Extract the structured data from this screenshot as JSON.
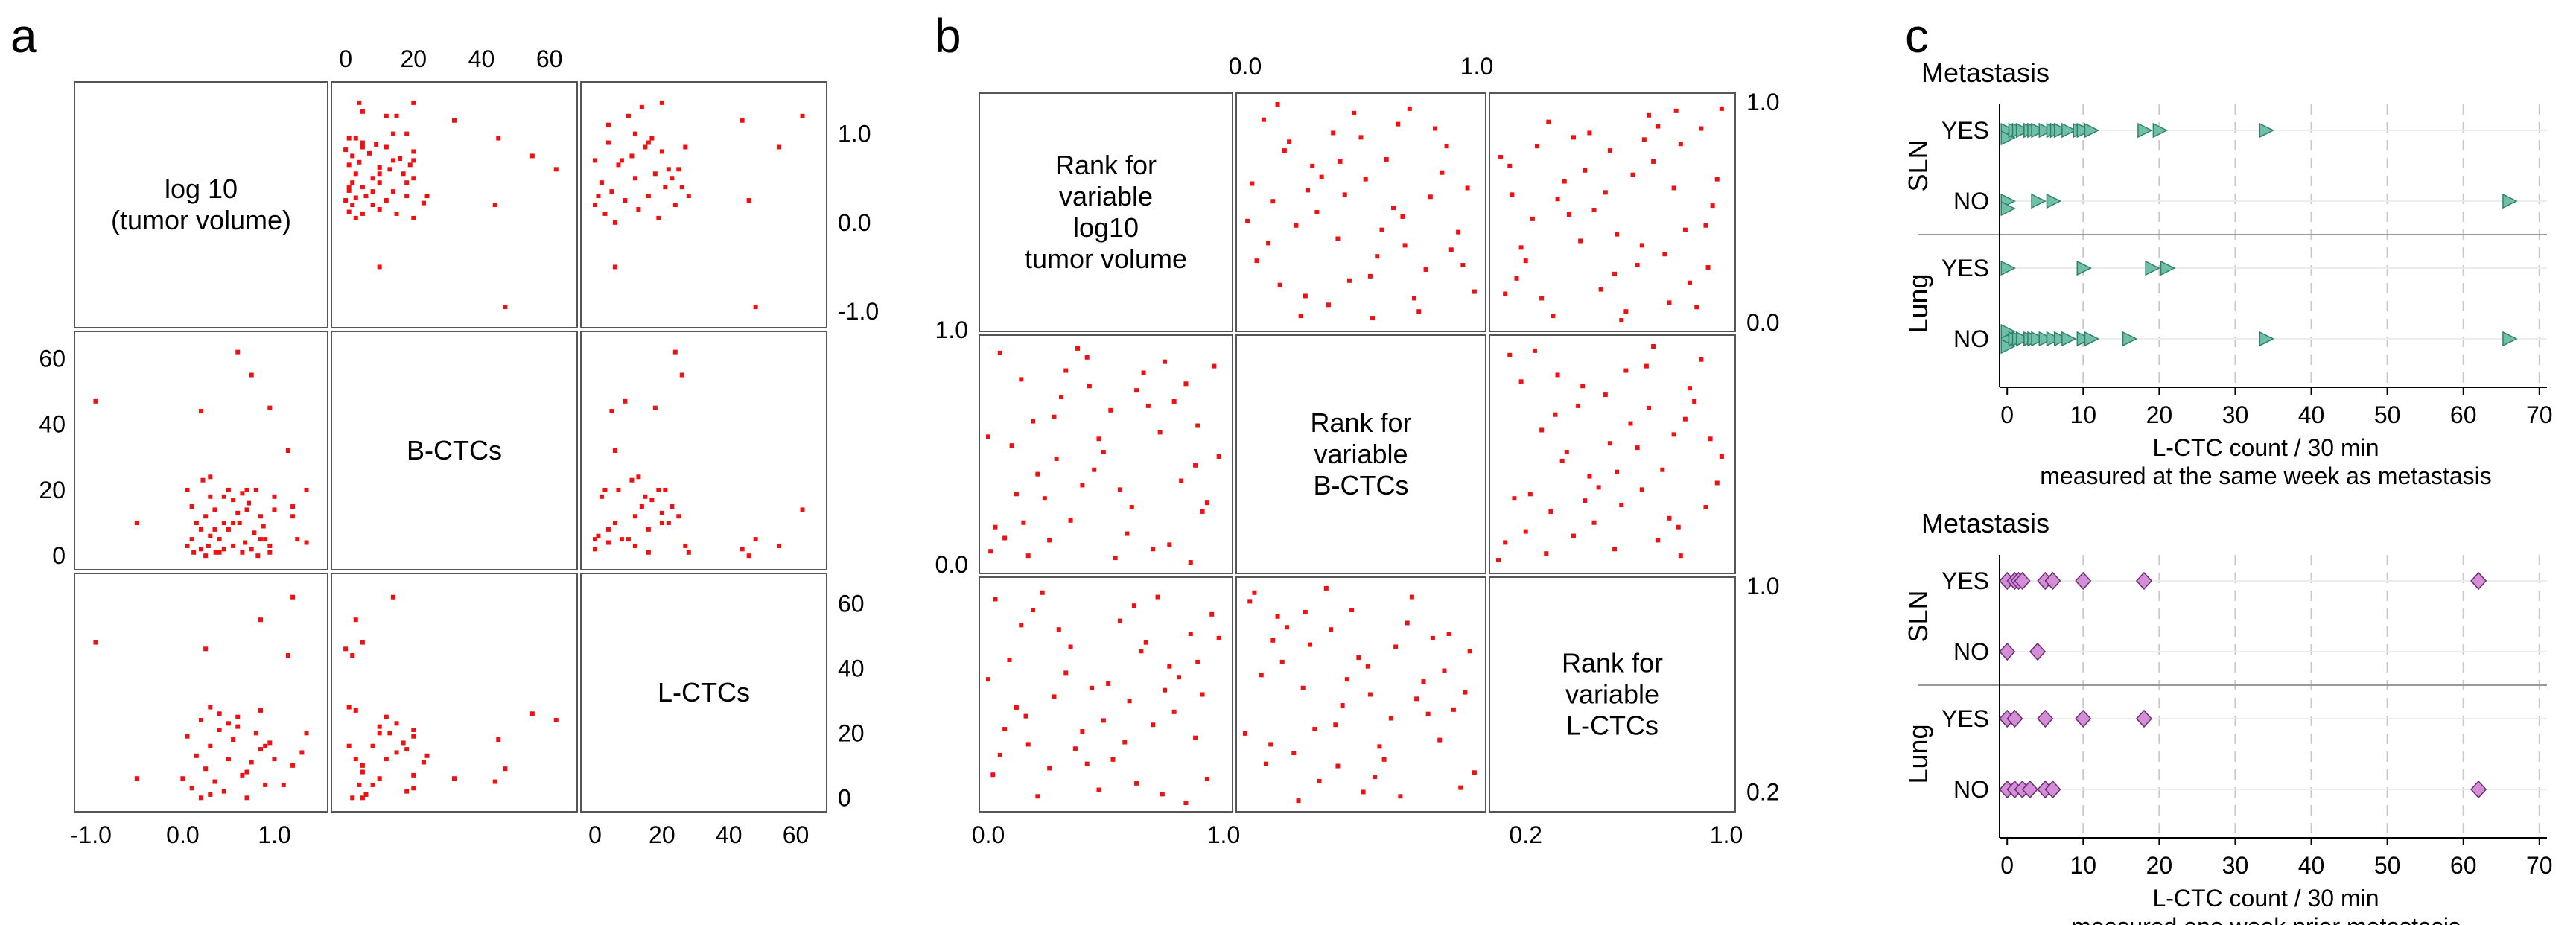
{
  "panel_labels": [
    "a",
    "b",
    "c"
  ],
  "colors": {
    "red_point": "#ee1111",
    "teal_marker": "#6fc0a6",
    "teal_edge": "#2f7f6a",
    "purple_marker": "#d48ed8",
    "purple_edge": "#6a2c70",
    "grid": "#c8c8c8"
  },
  "chart_data": [
    {
      "type": "scatter",
      "title": "a",
      "kind": "scatter-matrix",
      "variables": [
        "log 10\n(tumor volume)",
        "B-CTCs",
        "L-CTCs"
      ],
      "ranges": [
        [
          -1.1,
          1.5
        ],
        [
          -2,
          66
        ],
        [
          -2,
          67
        ]
      ],
      "ticks": {
        "top": [
          "0",
          "20",
          "40",
          "60"
        ],
        "right_row0": [
          "1.0",
          "0.0",
          "-1.0"
        ],
        "left_row1": [
          "60",
          "40",
          "20",
          "0"
        ],
        "right_row2": [
          "60",
          "40",
          "20",
          "0"
        ],
        "bottom_col0": [
          "-1.0",
          "0.0",
          "1.0"
        ],
        "bottom_col2": [
          "0",
          "20",
          "40",
          "60"
        ]
      },
      "points": [
        [
          1.35,
          4
        ],
        [
          0.85,
          5
        ],
        [
          1.2,
          12
        ],
        [
          0.35,
          8
        ],
        [
          0.45,
          10
        ],
        [
          -0.5,
          10
        ],
        [
          0.6,
          62
        ],
        [
          0.75,
          55
        ],
        [
          1.15,
          32
        ],
        [
          1.25,
          5
        ],
        [
          1.2,
          15
        ],
        [
          0.95,
          45
        ],
        [
          1.0,
          18
        ],
        [
          1.35,
          20
        ],
        [
          0.2,
          44
        ],
        [
          0.05,
          20
        ],
        [
          -0.95,
          47
        ],
        [
          0.22,
          23
        ],
        [
          0.3,
          24
        ],
        [
          0.45,
          18
        ],
        [
          0.55,
          17
        ],
        [
          0.7,
          20
        ],
        [
          0.8,
          20
        ],
        [
          0.1,
          15
        ],
        [
          0.25,
          12
        ],
        [
          0.3,
          6
        ],
        [
          0.4,
          5
        ],
        [
          0.45,
          2
        ],
        [
          0.55,
          3
        ],
        [
          0.65,
          1
        ],
        [
          0.75,
          2
        ],
        [
          0.82,
          0
        ],
        [
          0.9,
          5
        ],
        [
          0.95,
          3
        ],
        [
          1.0,
          14
        ],
        [
          0.15,
          10
        ],
        [
          0.2,
          8
        ],
        [
          0.28,
          3
        ],
        [
          0.36,
          1
        ],
        [
          0.6,
          13
        ],
        [
          0.7,
          14
        ],
        [
          0.85,
          12
        ],
        [
          0.05,
          3
        ],
        [
          0.12,
          1
        ],
        [
          0.5,
          8
        ],
        [
          0.62,
          10
        ],
        [
          0.78,
          7
        ],
        [
          0.88,
          9
        ],
        [
          0.25,
          0
        ],
        [
          0.4,
          1
        ],
        [
          0.1,
          5
        ],
        [
          0.3,
          18
        ],
        [
          0.55,
          10
        ],
        [
          0.65,
          19
        ],
        [
          0.95,
          1
        ],
        [
          0.35,
          14
        ],
        [
          0.68,
          4
        ],
        [
          0.2,
          2
        ],
        [
          0.5,
          20
        ],
        [
          0.72,
          16
        ]
      ],
      "ab_ac_points": [
        [
          4,
          0.9
        ],
        [
          8,
          0.7
        ],
        [
          12,
          0.5
        ],
        [
          16,
          0.3
        ],
        [
          20,
          0.8
        ],
        [
          22,
          0.6
        ],
        [
          24,
          0.2
        ],
        [
          26,
          0.4
        ],
        [
          6,
          0.0
        ],
        [
          10,
          1.2
        ],
        [
          14,
          1.3
        ],
        [
          18,
          0.55
        ],
        [
          2,
          0.45
        ],
        [
          3,
          0.1
        ],
        [
          5,
          0.35
        ],
        [
          7,
          0.65
        ],
        [
          9,
          0.25
        ],
        [
          11,
          0.75
        ],
        [
          13,
          0.15
        ],
        [
          15,
          0.85
        ],
        [
          17,
          0.95
        ],
        [
          19,
          0.05
        ],
        [
          21,
          0.4
        ],
        [
          23,
          0.5
        ],
        [
          25,
          0.6
        ],
        [
          1,
          0.3
        ],
        [
          0,
          0.7
        ],
        [
          0,
          0.2
        ],
        [
          27,
          0.85
        ],
        [
          28,
          0.3
        ],
        [
          44,
          1.15
        ],
        [
          46,
          0.25
        ],
        [
          48,
          -0.95
        ],
        [
          55,
          0.85
        ],
        [
          62,
          1.2
        ],
        [
          6,
          -0.5
        ],
        [
          4,
          1.1
        ],
        [
          12,
          1.0
        ],
        [
          16,
          0.9
        ],
        [
          20,
          1.35
        ]
      ]
    },
    {
      "type": "scatter",
      "title": "b",
      "kind": "rank-scatter-matrix",
      "variables": [
        "Rank for\nvariable\nlog10\ntumor volume",
        "Rank for\nvariable\nB-CTCs",
        "Rank for\nvariable\nL-CTCs"
      ],
      "ticks": {
        "top": [
          "0.0",
          "1.0"
        ],
        "right_row0": [
          "1.0",
          "0.0"
        ],
        "left_row1": [
          "1.0",
          "0.0"
        ],
        "right_row2": [
          "1.0",
          "0.2"
        ],
        "bottom_col0": [
          "0.0",
          "1.0"
        ],
        "bottom_col1": [
          "1.0"
        ],
        "bottom_col2": [
          "0.2",
          "1.0"
        ]
      },
      "rank_points": [
        [
          0.05,
          0.28
        ],
        [
          0.12,
          0.55
        ],
        [
          0.19,
          0.82
        ],
        [
          0.26,
          0.12
        ],
        [
          0.33,
          0.66
        ],
        [
          0.4,
          0.38
        ],
        [
          0.47,
          0.95
        ],
        [
          0.54,
          0.21
        ],
        [
          0.61,
          0.74
        ],
        [
          0.68,
          0.48
        ],
        [
          0.75,
          0.05
        ],
        [
          0.82,
          0.88
        ],
        [
          0.89,
          0.33
        ],
        [
          0.96,
          0.61
        ],
        [
          0.08,
          0.92
        ],
        [
          0.15,
          0.17
        ],
        [
          0.22,
          0.44
        ],
        [
          0.29,
          0.71
        ],
        [
          0.36,
          0.08
        ],
        [
          0.43,
          0.58
        ],
        [
          0.5,
          0.84
        ],
        [
          0.57,
          0.3
        ],
        [
          0.64,
          0.52
        ],
        [
          0.71,
          0.97
        ],
        [
          0.78,
          0.24
        ],
        [
          0.85,
          0.68
        ],
        [
          0.92,
          0.41
        ],
        [
          0.99,
          0.14
        ],
        [
          0.03,
          0.63
        ],
        [
          0.1,
          0.36
        ],
        [
          0.17,
          0.78
        ],
        [
          0.24,
          0.03
        ],
        [
          0.31,
          0.5
        ],
        [
          0.38,
          0.86
        ],
        [
          0.45,
          0.19
        ],
        [
          0.52,
          0.65
        ],
        [
          0.59,
          0.42
        ],
        [
          0.66,
          0.9
        ],
        [
          0.73,
          0.11
        ],
        [
          0.8,
          0.57
        ],
        [
          0.87,
          0.8
        ],
        [
          0.94,
          0.26
        ],
        [
          0.01,
          0.46
        ],
        [
          0.14,
          0.99
        ],
        [
          0.27,
          0.6
        ],
        [
          0.41,
          0.73
        ],
        [
          0.55,
          0.02
        ],
        [
          0.69,
          0.35
        ]
      ]
    },
    {
      "type": "scatter",
      "title": "c-top",
      "kind": "strip",
      "section_label": "Metastasis",
      "groups": [
        {
          "name": "SLN",
          "rows": [
            {
              "label": "YES",
              "values": [
                0,
                0,
                1,
                1.5,
                2,
                3,
                3.5,
                4,
                5,
                6,
                6.5,
                7,
                8,
                9.5,
                10,
                11,
                18,
                20,
                34
              ]
            },
            {
              "label": "NO",
              "values": [
                0,
                0,
                4,
                6,
                66
              ]
            }
          ]
        },
        {
          "name": "Lung",
          "rows": [
            {
              "label": "YES",
              "values": [
                0,
                10,
                19,
                21
              ]
            },
            {
              "label": "NO",
              "values": [
                0,
                0,
                0,
                1,
                1.5,
                2,
                3,
                3.5,
                4,
                5,
                6,
                7,
                8,
                10,
                11,
                16,
                34,
                66
              ]
            }
          ]
        }
      ],
      "xticks": [
        "0",
        "10",
        "20",
        "30",
        "40",
        "50",
        "60",
        "70"
      ],
      "xlim": [
        -1,
        71
      ],
      "xlabel": "L-CTC count / 30 min",
      "xlabel2": "measured at the same week as metastasis",
      "marker": "triangle"
    },
    {
      "type": "scatter",
      "title": "c-bottom",
      "kind": "strip",
      "section_label": "Metastasis",
      "groups": [
        {
          "name": "SLN",
          "rows": [
            {
              "label": "YES",
              "values": [
                0,
                1,
                1.5,
                2,
                5,
                6,
                10,
                18,
                62
              ]
            },
            {
              "label": "NO",
              "values": [
                0,
                4
              ]
            }
          ]
        },
        {
          "name": "Lung",
          "rows": [
            {
              "label": "YES",
              "values": [
                0,
                1,
                5,
                10,
                18
              ]
            },
            {
              "label": "NO",
              "values": [
                0,
                1,
                2,
                3,
                5,
                6,
                62
              ]
            }
          ]
        }
      ],
      "xticks": [
        "0",
        "10",
        "20",
        "30",
        "40",
        "50",
        "60",
        "70"
      ],
      "xlim": [
        -1,
        71
      ],
      "xlabel": "L-CTC count / 30 min",
      "xlabel2": "measured one week prior metastasis",
      "marker": "diamond"
    }
  ]
}
